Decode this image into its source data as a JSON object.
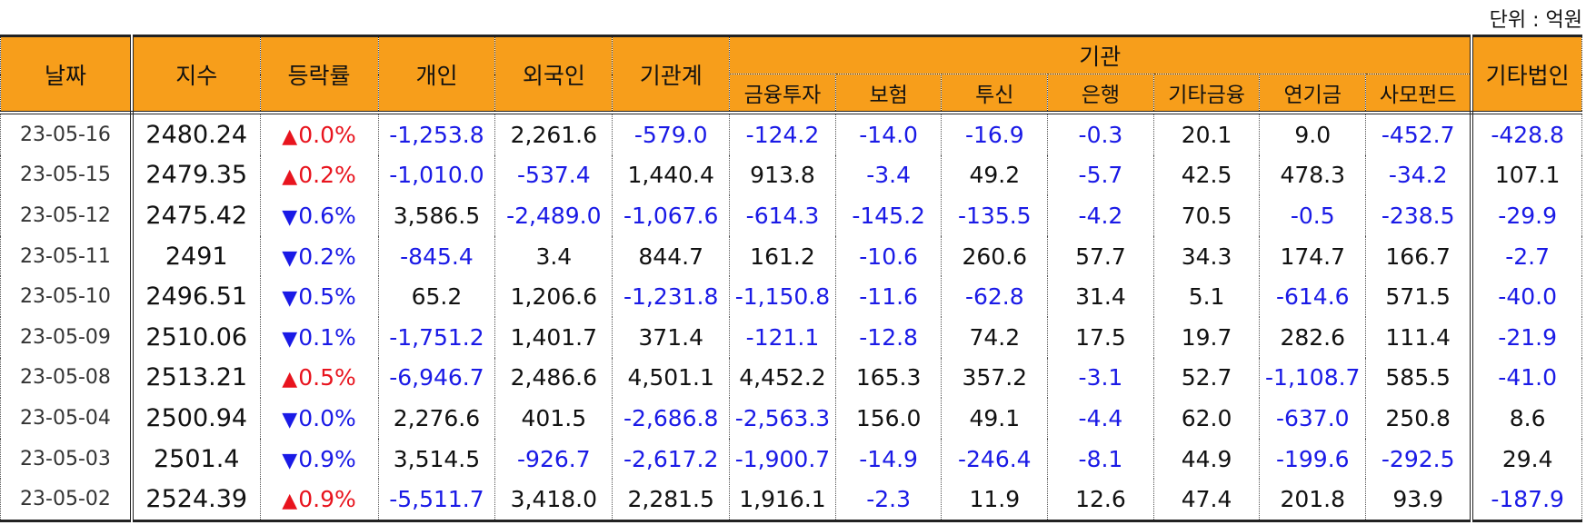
{
  "unit_label": "단위 : 억원",
  "headers": {
    "date": "날짜",
    "index": "지수",
    "change": "등락률",
    "individual": "개인",
    "foreign": "외국인",
    "institution_total": "기관계",
    "institution_group": "기관",
    "financial_investment": "금융투자",
    "insurance": "보험",
    "investment_trust": "투신",
    "bank": "은행",
    "other_financial": "기타금융",
    "pension": "연기금",
    "private_fund": "사모펀드",
    "other_corp": "기타법인"
  },
  "up_arrow": "▲",
  "down_arrow": "▼",
  "rows": [
    {
      "date": "23-05-16",
      "index": "2480.24",
      "dir": "up",
      "change": "0.0%",
      "values": [
        "-1,253.8",
        "2,261.6",
        "-579.0",
        "-124.2",
        "-14.0",
        "-16.9",
        "-0.3",
        "20.1",
        "9.0",
        "-452.7",
        "-428.8"
      ]
    },
    {
      "date": "23-05-15",
      "index": "2479.35",
      "dir": "up",
      "change": "0.2%",
      "values": [
        "-1,010.0",
        "-537.4",
        "1,440.4",
        "913.8",
        "-3.4",
        "49.2",
        "-5.7",
        "42.5",
        "478.3",
        "-34.2",
        "107.1"
      ]
    },
    {
      "date": "23-05-12",
      "index": "2475.42",
      "dir": "down",
      "change": "0.6%",
      "values": [
        "3,586.5",
        "-2,489.0",
        "-1,067.6",
        "-614.3",
        "-145.2",
        "-135.5",
        "-4.2",
        "70.5",
        "-0.5",
        "-238.5",
        "-29.9"
      ]
    },
    {
      "date": "23-05-11",
      "index": "2491",
      "dir": "down",
      "change": "0.2%",
      "values": [
        "-845.4",
        "3.4",
        "844.7",
        "161.2",
        "-10.6",
        "260.6",
        "57.7",
        "34.3",
        "174.7",
        "166.7",
        "-2.7"
      ]
    },
    {
      "date": "23-05-10",
      "index": "2496.51",
      "dir": "down",
      "change": "0.5%",
      "values": [
        "65.2",
        "1,206.6",
        "-1,231.8",
        "-1,150.8",
        "-11.6",
        "-62.8",
        "31.4",
        "5.1",
        "-614.6",
        "571.5",
        "-40.0"
      ]
    },
    {
      "date": "23-05-09",
      "index": "2510.06",
      "dir": "down",
      "change": "0.1%",
      "values": [
        "-1,751.2",
        "1,401.7",
        "371.4",
        "-121.1",
        "-12.8",
        "74.2",
        "17.5",
        "19.7",
        "282.6",
        "111.4",
        "-21.9"
      ]
    },
    {
      "date": "23-05-08",
      "index": "2513.21",
      "dir": "up",
      "change": "0.5%",
      "values": [
        "-6,946.7",
        "2,486.6",
        "4,501.1",
        "4,452.2",
        "165.3",
        "357.2",
        "-3.1",
        "52.7",
        "-1,108.7",
        "585.5",
        "-41.0"
      ]
    },
    {
      "date": "23-05-04",
      "index": "2500.94",
      "dir": "down",
      "change": "0.0%",
      "values": [
        "2,276.6",
        "401.5",
        "-2,686.8",
        "-2,563.3",
        "156.0",
        "49.1",
        "-4.4",
        "62.0",
        "-637.0",
        "250.8",
        "8.6"
      ]
    },
    {
      "date": "23-05-03",
      "index": "2501.4",
      "dir": "down",
      "change": "0.9%",
      "values": [
        "3,514.5",
        "-926.7",
        "-2,617.2",
        "-1,900.7",
        "-14.9",
        "-246.4",
        "-8.1",
        "44.9",
        "-199.6",
        "-292.5",
        "29.4"
      ]
    },
    {
      "date": "23-05-02",
      "index": "2524.39",
      "dir": "up",
      "change": "0.9%",
      "values": [
        "-5,511.7",
        "3,418.0",
        "2,281.5",
        "1,916.1",
        "-2.3",
        "11.9",
        "12.6",
        "47.4",
        "201.8",
        "93.9",
        "-187.9"
      ]
    }
  ],
  "colors": {
    "header_bg": "#f79e1b",
    "negative": "#1a1ae6",
    "positive": "#111111",
    "up": "#e8141e",
    "down": "#1a1ae6"
  }
}
